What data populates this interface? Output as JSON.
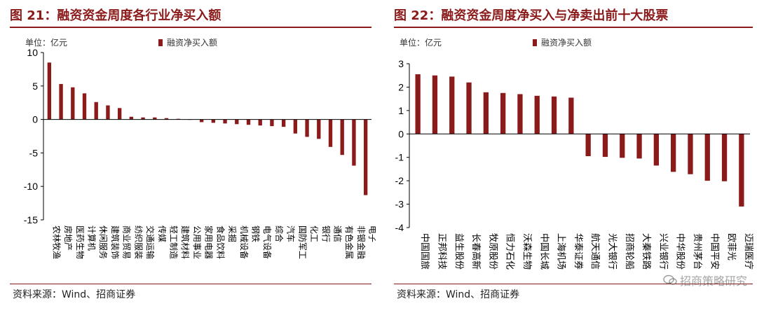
{
  "colors": {
    "bar": "#8b1a1a",
    "title": "#8b1a1a",
    "axis": "#000000"
  },
  "left_panel": {
    "title": "图 21：融资资金周度各行业净买入额",
    "unit": "单位：亿元",
    "legend": "融资净买入额",
    "source": "资料来源：Wind、招商证券"
  },
  "right_panel": {
    "title": "图 22：融资资金周度净买入与净卖出前十大股票",
    "unit": "单位：亿元",
    "legend": "融资净买入额",
    "source": "资料来源：Wind、招商证券",
    "watermark": "招商策略研究"
  },
  "chart_data": [
    {
      "type": "bar",
      "title": "融资资金周度各行业净买入额",
      "ylabel": "单位：亿元",
      "ylim": [
        -15,
        10
      ],
      "yticks": [
        10,
        5,
        0,
        -5,
        -10,
        -15
      ],
      "categories": [
        "农林牧渔",
        "房地产",
        "医药生物",
        "计算机",
        "休闲服务",
        "建筑装饰",
        "商业贸易",
        "纺织服装",
        "交通运输",
        "传媒",
        "轻工制造",
        "建筑材料",
        "公用事业",
        "家用电器",
        "食品饮料",
        "采掘",
        "机械设备",
        "钢铁",
        "电气设备",
        "综合",
        "汽车",
        "国防军工",
        "化工",
        "银行",
        "通信",
        "有色金属",
        "非银金融",
        "电子"
      ],
      "series": [
        {
          "name": "融资净买入额",
          "values": [
            8.5,
            5.3,
            4.8,
            3.9,
            2.6,
            2.1,
            1.7,
            0.4,
            0.3,
            0.3,
            0.2,
            0.1,
            0.0,
            -0.4,
            -0.5,
            -0.6,
            -0.7,
            -0.8,
            -0.9,
            -1.0,
            -1.1,
            -2.1,
            -2.6,
            -2.9,
            -4.1,
            -5.3,
            -6.9,
            -11.3
          ]
        }
      ]
    },
    {
      "type": "bar",
      "title": "融资资金周度净买入与净卖出前十大股票",
      "ylabel": "单位：亿元",
      "ylim": [
        -4,
        3
      ],
      "yticks": [
        3,
        2,
        1,
        0,
        -1,
        -2,
        -3,
        -4
      ],
      "categories": [
        "中国国旅",
        "正邦科技",
        "益生股份",
        "长春高新",
        "牧原股份",
        "恒力石化",
        "沃森生物",
        "中国长城",
        "上海机场",
        "华泰证券",
        "航天通信",
        "光大银行",
        "招商轮船",
        "大秦铁路",
        "兴业银行",
        "中华股份",
        "贵州茅台",
        "中国平安",
        "欧菲光",
        "迈瑞医疗"
      ],
      "series": [
        {
          "name": "融资净买入额",
          "values": [
            2.55,
            2.5,
            2.45,
            2.2,
            1.78,
            1.75,
            1.7,
            1.63,
            1.6,
            1.55,
            -0.95,
            -0.98,
            -1.02,
            -1.05,
            -1.35,
            -1.62,
            -1.72,
            -2.0,
            -2.02,
            -3.1
          ]
        }
      ]
    }
  ]
}
